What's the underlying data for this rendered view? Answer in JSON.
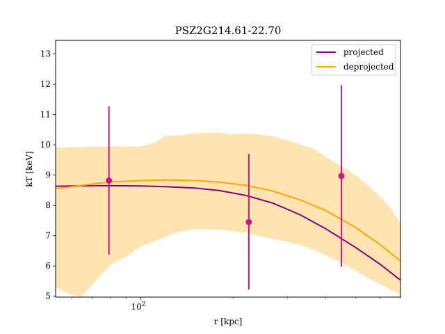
{
  "chart_data": {
    "type": "line",
    "title": "PSZ2G214.61-22.70",
    "xlabel": "r [kpc]",
    "ylabel": "kT [keV]",
    "xscale": "log",
    "xlim": [
      53,
      700
    ],
    "ylim": [
      4.97,
      13.45
    ],
    "x_tick_labels": [
      {
        "value": 100,
        "label": "10^2"
      }
    ],
    "y_tick_labels": [
      "5",
      "6",
      "7",
      "8",
      "9",
      "10",
      "11",
      "12",
      "13"
    ],
    "legend": {
      "position": "top-right",
      "entries": [
        "projected",
        "deprojected"
      ]
    },
    "grid": false,
    "series": [
      {
        "name": "projected",
        "color": "#800080",
        "x": [
          53,
          60,
          70,
          80,
          100,
          120,
          150,
          180,
          220,
          270,
          330,
          400,
          500,
          600,
          700
        ],
        "y": [
          8.63,
          8.64,
          8.65,
          8.65,
          8.64,
          8.62,
          8.57,
          8.49,
          8.33,
          8.07,
          7.69,
          7.23,
          6.61,
          6.06,
          5.53
        ]
      },
      {
        "name": "deprojected",
        "color": "#ffa500",
        "x": [
          53,
          60,
          70,
          80,
          100,
          120,
          150,
          180,
          220,
          270,
          330,
          400,
          500,
          600,
          700
        ],
        "y": [
          8.55,
          8.62,
          8.71,
          8.77,
          8.82,
          8.84,
          8.82,
          8.77,
          8.66,
          8.47,
          8.18,
          7.83,
          7.27,
          6.71,
          6.16
        ]
      }
    ],
    "band": {
      "color": "#ffa500",
      "x": [
        53,
        58,
        64,
        70,
        75,
        80,
        85,
        90,
        100,
        105,
        110,
        115,
        120,
        130,
        150,
        180,
        200,
        220,
        240,
        270,
        300,
        330,
        370,
        400,
        450,
        500,
        550,
        600,
        650,
        700
      ],
      "upper": [
        9.91,
        9.92,
        9.93,
        9.94,
        9.94,
        9.95,
        9.95,
        9.95,
        9.95,
        10.0,
        10.05,
        10.15,
        10.3,
        10.3,
        10.38,
        10.4,
        10.35,
        10.38,
        10.35,
        10.28,
        10.15,
        10.02,
        9.85,
        9.6,
        9.3,
        9.0,
        8.65,
        8.3,
        7.9,
        7.4
      ],
      "lower": [
        5.28,
        5.1,
        4.97,
        5.4,
        5.75,
        6.05,
        6.2,
        6.3,
        6.65,
        6.72,
        6.8,
        6.88,
        6.95,
        7.1,
        7.22,
        7.2,
        7.15,
        7.1,
        7.0,
        6.9,
        6.8,
        6.7,
        6.5,
        6.35,
        6.1,
        5.85,
        5.6,
        5.4,
        5.22,
        5.05
      ]
    },
    "points": {
      "color": "#c71585",
      "x": [
        79,
        225,
        450
      ],
      "y": [
        8.82,
        7.45,
        8.97
      ],
      "yerr_low": [
        6.37,
        5.22,
        5.98
      ],
      "yerr_high": [
        11.27,
        9.7,
        11.97
      ]
    }
  }
}
